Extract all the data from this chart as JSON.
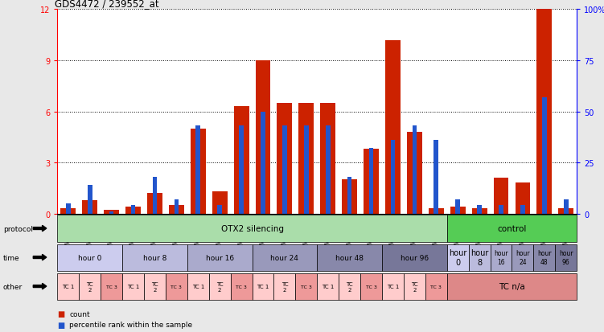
{
  "title": "GDS4472 / 239552_at",
  "samples": [
    "GSM565176",
    "GSM565182",
    "GSM565188",
    "GSM565177",
    "GSM565183",
    "GSM565189",
    "GSM565178",
    "GSM565184",
    "GSM565190",
    "GSM565179",
    "GSM565185",
    "GSM565191",
    "GSM565180",
    "GSM565186",
    "GSM565192",
    "GSM565181",
    "GSM565187",
    "GSM565193",
    "GSM565194",
    "GSM565195",
    "GSM565196",
    "GSM565197",
    "GSM565198",
    "GSM565199"
  ],
  "count_values": [
    0.3,
    0.8,
    0.2,
    0.4,
    1.2,
    0.5,
    5.0,
    1.3,
    6.3,
    9.0,
    6.5,
    6.5,
    6.5,
    2.0,
    3.8,
    10.2,
    4.8,
    0.3,
    0.4,
    0.3,
    2.1,
    1.8,
    12.0,
    0.3
  ],
  "percentile_values": [
    5,
    14,
    1,
    4,
    18,
    7,
    43,
    4,
    43,
    50,
    43,
    43,
    43,
    18,
    32,
    36,
    43,
    36,
    7,
    4,
    4,
    4,
    57,
    7
  ],
  "bar_color": "#cc2200",
  "pct_color": "#2255cc",
  "ylim_left": [
    0,
    12
  ],
  "ylim_right": [
    0,
    100
  ],
  "yticks_left": [
    0,
    3,
    6,
    9,
    12
  ],
  "ytick_labels_left": [
    "0",
    "3",
    "6",
    "9",
    "12"
  ],
  "yticks_right": [
    0,
    25,
    50,
    75,
    100
  ],
  "ytick_labels_right": [
    "0",
    "25",
    "50",
    "75",
    "100%"
  ],
  "protocol_silencing_color": "#aaddaa",
  "protocol_control_color": "#55cc55",
  "protocol_silencing_label": "OTX2 silencing",
  "protocol_control_label": "control",
  "time_colors": [
    "#ccccee",
    "#bbbbdd",
    "#aaaacc",
    "#9999bb",
    "#8888aa",
    "#777799"
  ],
  "time_labels_long": [
    "hour 0",
    "hour 8",
    "hour 16",
    "hour 24",
    "hour 48",
    "hour 96"
  ],
  "time_labels_short": [
    "hour\n0",
    "hour\n8",
    "hour\n16",
    "hour\n24",
    "hour\n48",
    "hour\n96"
  ],
  "tc_light": "#ffcccc",
  "tc_dark": "#ee9999",
  "tc_nva_color": "#dd8888",
  "row_label_protocol": "protocol",
  "row_label_time": "time",
  "row_label_other": "other",
  "legend_count": "count",
  "legend_pct": "percentile rank within the sample",
  "bg_color": "#e8e8e8",
  "bar_area_bg": "#ffffff"
}
